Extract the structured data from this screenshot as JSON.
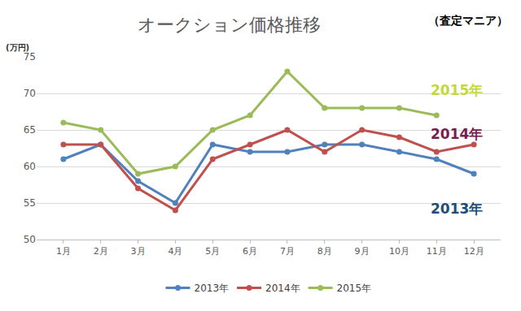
{
  "chart_data": {
    "type": "line",
    "title": "オークション価格推移",
    "subtitle": "（査定マニア）",
    "y_label": "(万円)",
    "categories": [
      "1月",
      "2月",
      "3月",
      "4月",
      "5月",
      "6月",
      "7月",
      "8月",
      "9月",
      "10月",
      "11月",
      "12月"
    ],
    "series": [
      {
        "name": "2013年",
        "color": "#4f81bd",
        "marker": "circle",
        "values": [
          61,
          63,
          58,
          55,
          63,
          62,
          62,
          63,
          63,
          62,
          61,
          59
        ]
      },
      {
        "name": "2014年",
        "color": "#c0504d",
        "marker": "circle",
        "values": [
          63,
          63,
          57,
          54,
          61,
          63,
          65,
          62,
          65,
          64,
          62,
          63
        ]
      },
      {
        "name": "2015年",
        "color": "#9bbb59",
        "marker": "circle",
        "values": [
          66,
          65,
          59,
          60,
          65,
          67,
          73,
          68,
          68,
          68,
          67,
          null
        ]
      }
    ],
    "annotations": [
      {
        "text": "2015年",
        "color": "#c3d93b"
      },
      {
        "text": "2014年",
        "color": "#7a1d4e"
      },
      {
        "text": "2013年",
        "color": "#1f4e79"
      }
    ],
    "ylim": [
      50,
      75
    ],
    "yticks": [
      50,
      55,
      60,
      65,
      70,
      75
    ],
    "grid": true,
    "legend": "bottom"
  }
}
